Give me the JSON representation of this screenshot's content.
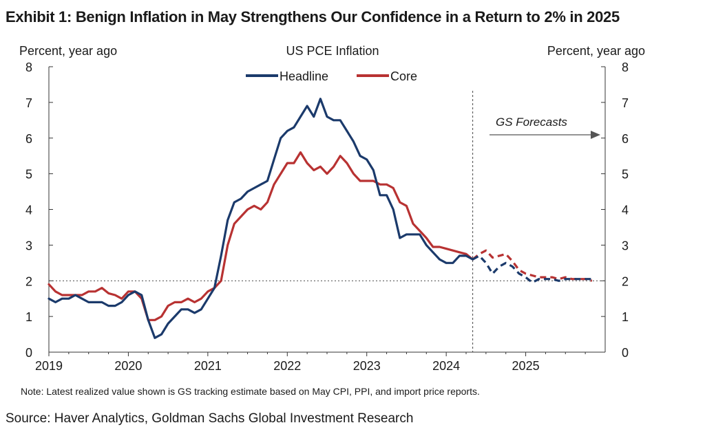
{
  "exhibit_title": "Exhibit 1: Benign Inflation in May Strengthens Our Confidence in a Return to 2% in 2025",
  "source": "Source: Haver Analytics, Goldman Sachs Global Investment Research",
  "chart_data": {
    "type": "line",
    "title": "US PCE Inflation",
    "ylabel_left": "Percent, year ago",
    "ylabel_right": "Percent, year ago",
    "ylim": [
      0,
      8
    ],
    "yticks": [
      "0",
      "1",
      "2",
      "3",
      "4",
      "5",
      "6",
      "7",
      "8"
    ],
    "xticks": [
      "2019",
      "2020",
      "2021",
      "2022",
      "2023",
      "2024",
      "2025"
    ],
    "xlim": [
      "2019-01",
      "2025-12"
    ],
    "reference_line": {
      "y": 2,
      "style": "dotted"
    },
    "forecast_divider": "2024-05",
    "forecast_label": "GS Forecasts",
    "note": "Note: Latest realized value shown is GS tracking estimate based on May CPI, PPI,  and import price reports.",
    "legend_position": "top-center",
    "series": [
      {
        "name": "Headline",
        "color": "#1b3a6b",
        "start": "2019-01",
        "values": [
          1.5,
          1.4,
          1.5,
          1.5,
          1.6,
          1.5,
          1.4,
          1.4,
          1.4,
          1.3,
          1.3,
          1.4,
          1.6,
          1.7,
          1.6,
          0.9,
          0.4,
          0.5,
          0.8,
          1.0,
          1.2,
          1.2,
          1.1,
          1.2,
          1.5,
          1.8,
          2.7,
          3.7,
          4.2,
          4.3,
          4.5,
          4.6,
          4.7,
          4.8,
          5.4,
          6.0,
          6.2,
          6.3,
          6.6,
          6.9,
          6.6,
          7.1,
          6.6,
          6.5,
          6.5,
          6.2,
          5.9,
          5.5,
          5.4,
          5.1,
          4.4,
          4.4,
          4.0,
          3.2,
          3.3,
          3.3,
          3.3,
          3.0,
          2.8,
          2.6,
          2.5,
          2.5,
          2.7,
          2.7,
          2.6
        ],
        "forecast": [
          2.6,
          2.7,
          2.5,
          2.2,
          2.4,
          2.5,
          2.4,
          2.2,
          2.1,
          1.95,
          2.05,
          2.05,
          2.05,
          2.0,
          2.05,
          2.05,
          2.05,
          2.05,
          2.05
        ]
      },
      {
        "name": "Core",
        "color": "#b83232",
        "start": "2019-01",
        "values": [
          1.9,
          1.7,
          1.6,
          1.6,
          1.6,
          1.6,
          1.7,
          1.7,
          1.8,
          1.65,
          1.6,
          1.5,
          1.7,
          1.7,
          1.5,
          0.9,
          0.9,
          1.0,
          1.3,
          1.4,
          1.4,
          1.5,
          1.4,
          1.5,
          1.7,
          1.8,
          2.0,
          3.0,
          3.6,
          3.8,
          4.0,
          4.1,
          4.0,
          4.2,
          4.7,
          5.0,
          5.3,
          5.3,
          5.6,
          5.3,
          5.1,
          5.2,
          5.0,
          5.2,
          5.5,
          5.3,
          5.0,
          4.8,
          4.8,
          4.8,
          4.7,
          4.7,
          4.6,
          4.2,
          4.1,
          3.6,
          3.4,
          3.2,
          2.95,
          2.95,
          2.9,
          2.85,
          2.8,
          2.75,
          2.6
        ],
        "forecast": [
          2.6,
          2.75,
          2.85,
          2.65,
          2.7,
          2.75,
          2.55,
          2.3,
          2.2,
          2.15,
          2.1,
          2.1,
          2.1,
          2.05,
          2.1,
          2.05,
          2.05,
          2.05,
          2.0
        ]
      }
    ]
  }
}
